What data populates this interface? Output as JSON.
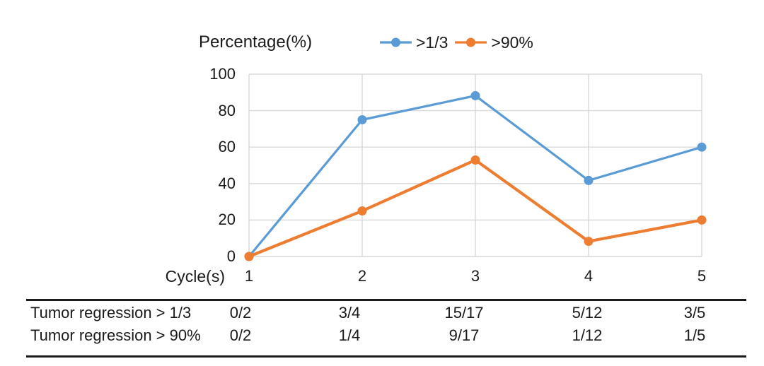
{
  "figure": {
    "y_axis_title": "Percentage(%)",
    "x_axis_title": "Cycle(s)"
  },
  "chart_data": {
    "type": "line",
    "x": [
      1,
      2,
      3,
      4,
      5
    ],
    "xlabel": "Cycle(s)",
    "ylabel": "Percentage(%)",
    "ylim": [
      0,
      100
    ],
    "y_ticks": [
      0,
      20,
      40,
      60,
      80,
      100
    ],
    "grid": true,
    "legend_position": "top-center",
    "series": [
      {
        "name": ">1/3",
        "color": "#5B9BD5",
        "values": [
          0,
          75,
          88.2,
          41.7,
          60
        ]
      },
      {
        "name": ">90%",
        "color": "#ED7D31",
        "values": [
          0,
          25,
          52.9,
          8.3,
          20
        ]
      }
    ]
  },
  "table": {
    "rows": [
      {
        "label": "Tumor regression > 1/3",
        "values": [
          "0/2",
          "3/4",
          "15/17",
          "5/12",
          "3/5"
        ]
      },
      {
        "label": "Tumor regression > 90%",
        "values": [
          "0/2",
          "1/4",
          "9/17",
          "1/12",
          "1/5"
        ]
      }
    ]
  },
  "colors": {
    "gridline": "#D9D9D9",
    "text": "#1A1A1A",
    "table_rule": "#1A1A1A",
    "series_blue": "#5B9BD5",
    "series_orange": "#ED7D31"
  }
}
